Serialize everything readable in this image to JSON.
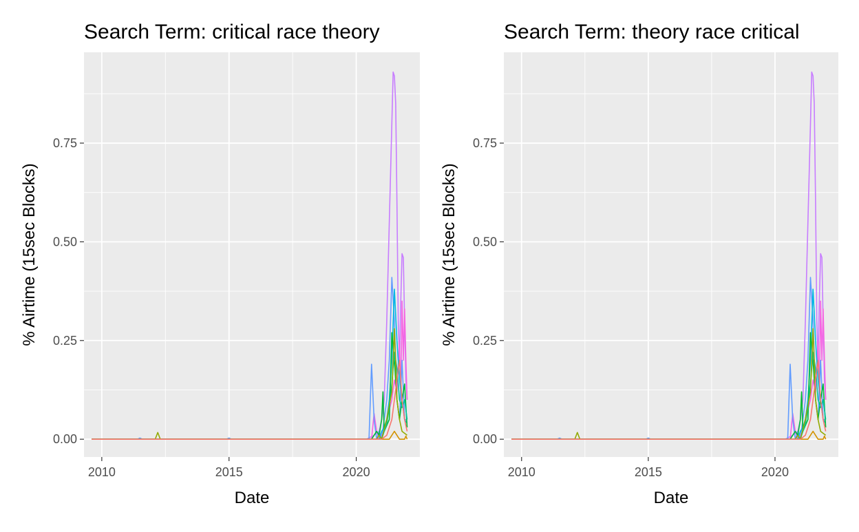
{
  "chart_data": [
    {
      "type": "line",
      "title": "Search Term: critical race theory",
      "xlabel": "Date",
      "ylabel": "% Airtime (15sec Blocks)",
      "xlim": [
        2009.3,
        2022.5
      ],
      "ylim": [
        -0.045,
        0.98
      ],
      "x_ticks": [
        2010,
        2015,
        2020
      ],
      "x_tick_labels": [
        "2010",
        "2015",
        "2020"
      ],
      "y_ticks": [
        0,
        0.25,
        0.5,
        0.75
      ],
      "y_tick_labels": [
        "0.00",
        "0.25",
        "0.50",
        "0.75"
      ],
      "grid": true,
      "legend": "none",
      "series": [
        {
          "color": "#C77CFF",
          "x": [
            2009.6,
            2020.4,
            2020.7,
            2020.9,
            2021.0,
            2021.1,
            2021.2,
            2021.3,
            2021.4,
            2021.45,
            2021.5,
            2021.55,
            2021.6,
            2021.65,
            2021.7,
            2021.75,
            2021.8,
            2021.85,
            2021.9,
            2021.95,
            2022.0
          ],
          "values": [
            0.0,
            0.0,
            0.01,
            0.02,
            0.05,
            0.1,
            0.3,
            0.55,
            0.8,
            0.93,
            0.92,
            0.85,
            0.6,
            0.3,
            0.2,
            0.35,
            0.47,
            0.46,
            0.3,
            0.15,
            0.1
          ]
        },
        {
          "color": "#F564E3",
          "x": [
            2009.6,
            2020.6,
            2020.7,
            2020.8,
            2020.9,
            2021.0,
            2021.2,
            2021.4,
            2021.5,
            2021.6,
            2021.7,
            2021.75,
            2021.8,
            2021.85,
            2021.9,
            2021.95,
            2022.0
          ],
          "values": [
            0.0,
            0.0,
            0.065,
            0.02,
            0.0,
            0.01,
            0.05,
            0.1,
            0.15,
            0.12,
            0.25,
            0.1,
            0.35,
            0.2,
            0.33,
            0.2,
            0.1
          ]
        },
        {
          "color": "#619CFF",
          "x": [
            2009.6,
            2011.4,
            2011.5,
            2011.6,
            2014.9,
            2015.0,
            2015.1,
            2020.5,
            2020.6,
            2020.7,
            2020.8,
            2020.9,
            2021.0,
            2021.1,
            2021.2,
            2021.3,
            2021.4,
            2021.5,
            2021.6,
            2021.7,
            2021.8,
            2021.9,
            2022.0
          ],
          "values": [
            0.0,
            0.0,
            0.003,
            0.0,
            0.0,
            0.003,
            0.0,
            0.0,
            0.19,
            0.05,
            0.0,
            0.02,
            0.0,
            0.05,
            0.1,
            0.2,
            0.41,
            0.3,
            0.1,
            0.05,
            0.2,
            0.05,
            0.05
          ]
        },
        {
          "color": "#00B9E3",
          "x": [
            2009.6,
            2020.9,
            2021.0,
            2021.1,
            2021.2,
            2021.3,
            2021.4,
            2021.5,
            2021.6,
            2021.7,
            2021.8,
            2021.9,
            2022.0
          ],
          "values": [
            0.0,
            0.0,
            0.02,
            0.03,
            0.05,
            0.1,
            0.2,
            0.38,
            0.25,
            0.15,
            0.1,
            0.05,
            0.04
          ]
        },
        {
          "color": "#00BA38",
          "x": [
            2009.6,
            2020.6,
            2020.8,
            2020.9,
            2021.0,
            2021.05,
            2021.1,
            2021.3,
            2021.4,
            2021.5,
            2021.6,
            2021.7,
            2021.8,
            2021.9,
            2022.0
          ],
          "values": [
            0.0,
            0.0,
            0.02,
            0.01,
            0.05,
            0.12,
            0.02,
            0.05,
            0.27,
            0.2,
            0.1,
            0.05,
            0.1,
            0.14,
            0.03
          ]
        },
        {
          "color": "#00C19F",
          "x": [
            2009.6,
            2021.0,
            2021.1,
            2021.2,
            2021.3,
            2021.4,
            2021.5,
            2021.6,
            2021.7,
            2021.8,
            2021.9,
            2022.0
          ],
          "values": [
            0.0,
            0.0,
            0.02,
            0.04,
            0.08,
            0.14,
            0.22,
            0.18,
            0.1,
            0.08,
            0.1,
            0.05
          ]
        },
        {
          "color": "#93AA00",
          "x": [
            2009.6,
            2012.1,
            2012.2,
            2012.3,
            2020.8,
            2020.9,
            2021.0,
            2021.2,
            2021.4,
            2021.5,
            2021.6,
            2021.7,
            2021.8,
            2022.0
          ],
          "values": [
            0.0,
            0.0,
            0.017,
            0.0,
            0.0,
            0.01,
            0.0,
            0.05,
            0.12,
            0.28,
            0.1,
            0.05,
            0.02,
            0.01
          ]
        },
        {
          "color": "#D39200",
          "x": [
            2009.6,
            2021.3,
            2021.5,
            2021.7,
            2021.9,
            2021.95,
            2022.0
          ],
          "values": [
            0.0,
            0.0,
            0.02,
            0.0,
            0.0,
            0.008,
            0.0
          ]
        },
        {
          "color": "#F8766D",
          "x": [
            2009.6,
            2021.0,
            2021.2,
            2021.3,
            2021.4,
            2021.5,
            2021.6,
            2021.7,
            2021.8,
            2021.9,
            2022.0
          ],
          "values": [
            0.0,
            0.0,
            0.01,
            0.03,
            0.05,
            0.1,
            0.15,
            0.2,
            0.1,
            0.05,
            0.02
          ]
        }
      ]
    },
    {
      "type": "line",
      "title": "Search Term: theory race critical",
      "xlabel": "Date",
      "ylabel": "% Airtime (15sec Blocks)",
      "xlim": [
        2009.3,
        2022.5
      ],
      "ylim": [
        -0.045,
        0.98
      ],
      "x_ticks": [
        2010,
        2015,
        2020
      ],
      "x_tick_labels": [
        "2010",
        "2015",
        "2020"
      ],
      "y_ticks": [
        0,
        0.25,
        0.5,
        0.75
      ],
      "y_tick_labels": [
        "0.00",
        "0.25",
        "0.50",
        "0.75"
      ],
      "grid": true,
      "legend": "none",
      "series": [
        {
          "color": "#C77CFF",
          "x": [
            2009.6,
            2020.4,
            2020.7,
            2020.9,
            2021.0,
            2021.1,
            2021.2,
            2021.3,
            2021.4,
            2021.45,
            2021.5,
            2021.55,
            2021.6,
            2021.65,
            2021.7,
            2021.75,
            2021.8,
            2021.85,
            2021.9,
            2021.95,
            2022.0
          ],
          "values": [
            0.0,
            0.0,
            0.01,
            0.02,
            0.05,
            0.1,
            0.3,
            0.55,
            0.8,
            0.93,
            0.92,
            0.85,
            0.6,
            0.3,
            0.2,
            0.35,
            0.47,
            0.46,
            0.3,
            0.15,
            0.1
          ]
        },
        {
          "color": "#F564E3",
          "x": [
            2009.6,
            2020.6,
            2020.7,
            2020.8,
            2020.9,
            2021.0,
            2021.2,
            2021.4,
            2021.5,
            2021.6,
            2021.7,
            2021.75,
            2021.8,
            2021.85,
            2021.9,
            2021.95,
            2022.0
          ],
          "values": [
            0.0,
            0.0,
            0.065,
            0.02,
            0.0,
            0.01,
            0.05,
            0.1,
            0.15,
            0.12,
            0.25,
            0.1,
            0.35,
            0.2,
            0.33,
            0.2,
            0.1
          ]
        },
        {
          "color": "#619CFF",
          "x": [
            2009.6,
            2011.4,
            2011.5,
            2011.6,
            2014.9,
            2015.0,
            2015.1,
            2020.5,
            2020.6,
            2020.7,
            2020.8,
            2020.9,
            2021.0,
            2021.1,
            2021.2,
            2021.3,
            2021.4,
            2021.5,
            2021.6,
            2021.7,
            2021.8,
            2021.9,
            2022.0
          ],
          "values": [
            0.0,
            0.0,
            0.003,
            0.0,
            0.0,
            0.003,
            0.0,
            0.0,
            0.19,
            0.05,
            0.0,
            0.02,
            0.0,
            0.05,
            0.1,
            0.2,
            0.41,
            0.3,
            0.1,
            0.05,
            0.2,
            0.05,
            0.05
          ]
        },
        {
          "color": "#00B9E3",
          "x": [
            2009.6,
            2020.9,
            2021.0,
            2021.1,
            2021.2,
            2021.3,
            2021.4,
            2021.5,
            2021.6,
            2021.7,
            2021.8,
            2021.9,
            2022.0
          ],
          "values": [
            0.0,
            0.0,
            0.02,
            0.03,
            0.05,
            0.1,
            0.2,
            0.38,
            0.25,
            0.15,
            0.1,
            0.05,
            0.04
          ]
        },
        {
          "color": "#00BA38",
          "x": [
            2009.6,
            2020.6,
            2020.8,
            2020.9,
            2021.0,
            2021.05,
            2021.1,
            2021.3,
            2021.4,
            2021.5,
            2021.6,
            2021.7,
            2021.8,
            2021.9,
            2022.0
          ],
          "values": [
            0.0,
            0.0,
            0.02,
            0.01,
            0.05,
            0.12,
            0.02,
            0.05,
            0.27,
            0.2,
            0.1,
            0.05,
            0.1,
            0.14,
            0.03
          ]
        },
        {
          "color": "#00C19F",
          "x": [
            2009.6,
            2021.0,
            2021.1,
            2021.2,
            2021.3,
            2021.4,
            2021.5,
            2021.6,
            2021.7,
            2021.8,
            2021.9,
            2022.0
          ],
          "values": [
            0.0,
            0.0,
            0.02,
            0.04,
            0.08,
            0.14,
            0.22,
            0.18,
            0.1,
            0.08,
            0.1,
            0.05
          ]
        },
        {
          "color": "#93AA00",
          "x": [
            2009.6,
            2012.1,
            2012.2,
            2012.3,
            2020.8,
            2020.9,
            2021.0,
            2021.2,
            2021.4,
            2021.5,
            2021.6,
            2021.7,
            2021.8,
            2022.0
          ],
          "values": [
            0.0,
            0.0,
            0.017,
            0.0,
            0.0,
            0.01,
            0.0,
            0.05,
            0.12,
            0.28,
            0.1,
            0.05,
            0.02,
            0.01
          ]
        },
        {
          "color": "#D39200",
          "x": [
            2009.6,
            2021.3,
            2021.5,
            2021.7,
            2021.9,
            2021.95,
            2022.0
          ],
          "values": [
            0.0,
            0.0,
            0.02,
            0.0,
            0.0,
            0.008,
            0.0
          ]
        },
        {
          "color": "#F8766D",
          "x": [
            2009.6,
            2021.0,
            2021.2,
            2021.3,
            2021.4,
            2021.5,
            2021.6,
            2021.7,
            2021.8,
            2021.9,
            2022.0
          ],
          "values": [
            0.0,
            0.0,
            0.01,
            0.03,
            0.05,
            0.1,
            0.15,
            0.2,
            0.1,
            0.05,
            0.02
          ]
        }
      ]
    }
  ]
}
